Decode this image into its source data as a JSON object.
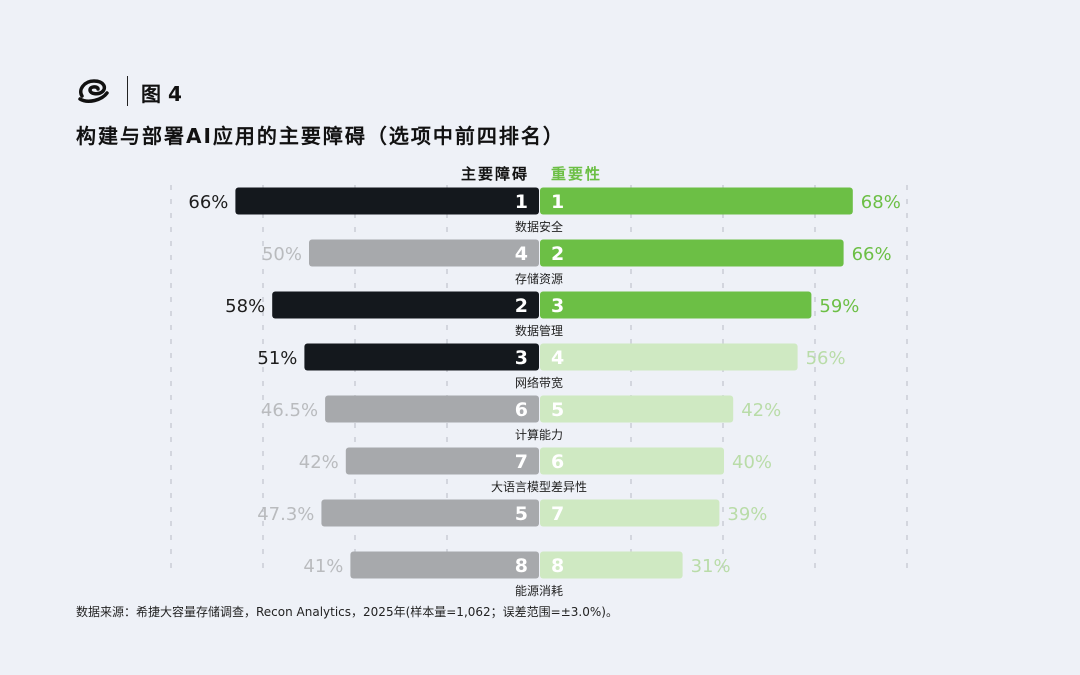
{
  "header": {
    "figure_label": "图 4",
    "title": "构建与部署AI应用的主要障碍（选项中前四排名）"
  },
  "colors": {
    "dark": "#14181d",
    "gray": "#a7a9ac",
    "green": "#6cbf45",
    "light_green": "#cfe9c2",
    "dark_text": "#1d1d1d",
    "gray_text": "#b9bbbe",
    "green_text": "#6cbf45",
    "light_green_text": "#b9dca8",
    "background": "#eef1f7"
  },
  "chart_data": {
    "type": "bar",
    "orientation": "horizontal-diverging",
    "title": "构建与部署AI应用的主要障碍（选项中前四排名）",
    "left_header": "主要障碍",
    "right_header": "重要性",
    "grid": true,
    "categories": [
      "数据安全",
      "存储资源",
      "数据管理",
      "网络带宽",
      "计算能力",
      "大语言模型差异性",
      "",
      "能源消耗"
    ],
    "series": [
      {
        "name": "主要障碍",
        "values": [
          66,
          50,
          58,
          51,
          46.5,
          42,
          47.3,
          41
        ],
        "labels": [
          "66%",
          "50%",
          "58%",
          "51%",
          "46.5%",
          "42%",
          "47.3%",
          "41%"
        ],
        "ranks": [
          1,
          4,
          2,
          3,
          6,
          7,
          5,
          8
        ],
        "highlighted": [
          true,
          false,
          true,
          true,
          false,
          false,
          false,
          false
        ]
      },
      {
        "name": "重要性",
        "values": [
          68,
          66,
          59,
          56,
          42,
          40,
          39,
          31
        ],
        "labels": [
          "68%",
          "66%",
          "59%",
          "56%",
          "42%",
          "40%",
          "39%",
          "31%"
        ],
        "ranks": [
          1,
          2,
          3,
          4,
          5,
          6,
          7,
          8
        ],
        "highlighted": [
          true,
          true,
          true,
          false,
          false,
          false,
          false,
          false
        ]
      }
    ],
    "xlim": [
      -80,
      80
    ]
  },
  "footer": {
    "source": "数据来源：希捷大容量存储调查，Recon Analytics，2025年(样本量=1,062；误差范围=±3.0%)。"
  }
}
